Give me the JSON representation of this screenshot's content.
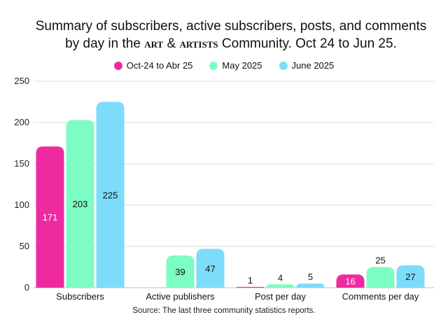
{
  "title_line1": "Summary of subscribers, active subscribers, posts, and comments",
  "title_pre": "by day in the",
  "title_brand_a": "art",
  "title_amp": "&",
  "title_brand_b": "artists",
  "title_post": "Community. Oct 24 to Jun 25.",
  "source": "Source: The last three community statistics reports.",
  "chart_data": {
    "type": "bar",
    "categories": [
      "Subscribers",
      "Active publishers",
      "Post per day",
      "Comments per day"
    ],
    "series": [
      {
        "name": "Oct-24 to Abr 25",
        "color": "#ee2aa0",
        "values": [
          171,
          null,
          1,
          16
        ],
        "labels": [
          "171",
          "",
          "1",
          "16"
        ]
      },
      {
        "name": "May 2025",
        "color": "#7dfcc4",
        "values": [
          203,
          39,
          4,
          25
        ],
        "labels": [
          "203",
          "39",
          "4",
          "25"
        ]
      },
      {
        "name": "June 2025",
        "color": "#7cdcfa",
        "values": [
          225,
          47,
          5,
          27
        ],
        "labels": [
          "225",
          "47",
          "5",
          "27"
        ]
      }
    ],
    "ylim": [
      0,
      250
    ],
    "yticks": [
      0,
      50,
      100,
      150,
      200,
      250
    ],
    "grid": true,
    "legend": "top-center"
  }
}
